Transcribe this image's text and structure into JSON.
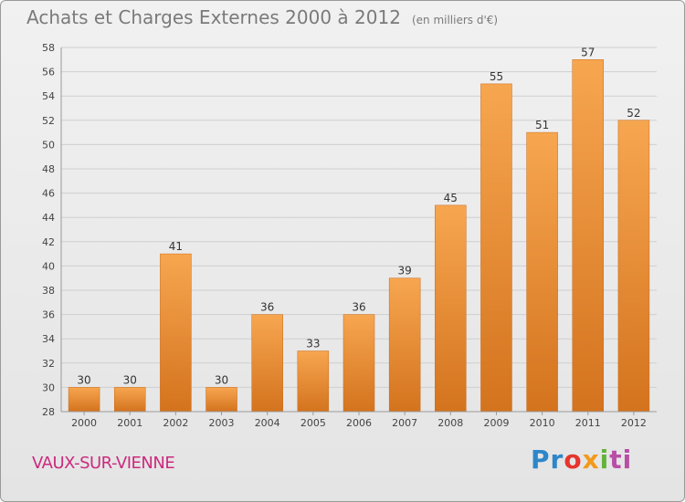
{
  "header": {
    "title": "Achats et Charges Externes 2000 à 2012",
    "unit": "(en milliers d'€)"
  },
  "footer": {
    "place": "VAUX-SUR-VIENNE",
    "logo": [
      "Pr",
      "o",
      "x",
      "i",
      "ti"
    ]
  },
  "colors": {
    "bar_top": "#f7a650",
    "bar_bottom": "#d4731e",
    "place_text": "#cc2a7e"
  },
  "chart_data": {
    "type": "bar",
    "categories": [
      "2000",
      "2001",
      "2002",
      "2003",
      "2004",
      "2005",
      "2006",
      "2007",
      "2008",
      "2009",
      "2010",
      "2011",
      "2012"
    ],
    "values": [
      30,
      30,
      41,
      30,
      36,
      33,
      36,
      39,
      45,
      55,
      51,
      57,
      52
    ],
    "ylim": [
      28,
      58
    ],
    "yticks": [
      28,
      30,
      32,
      34,
      36,
      38,
      40,
      42,
      44,
      46,
      48,
      50,
      52,
      54,
      56,
      58
    ],
    "grid": true
  }
}
